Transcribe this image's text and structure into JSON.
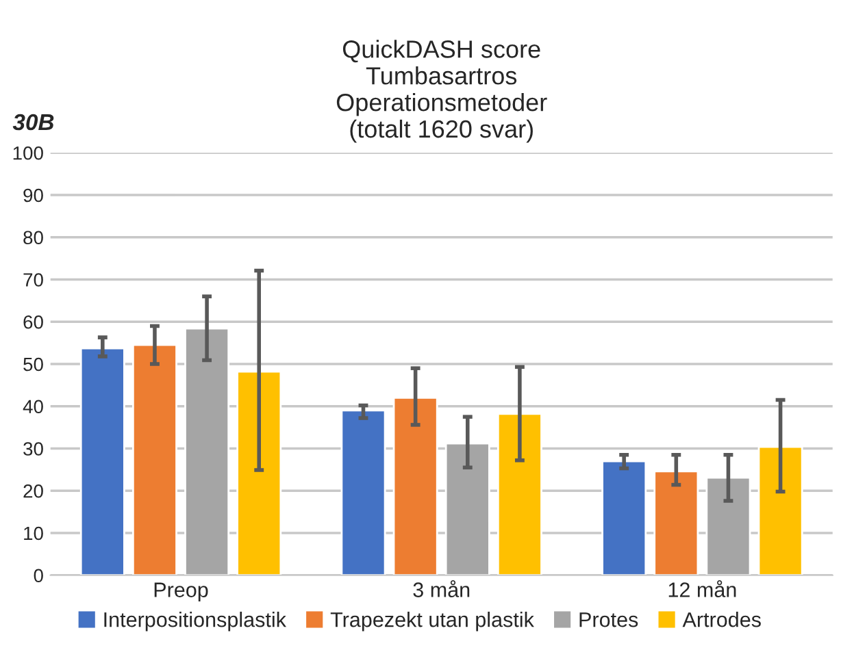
{
  "chart_data": {
    "type": "bar",
    "title": "QuickDASH score\nTumbasartros\nOperationsmetoder\n(totalt 1620 svar)",
    "annotations": [
      "30B"
    ],
    "categories": [
      "Preop",
      "3 mån",
      "12 mån"
    ],
    "series": [
      {
        "name": "Interpositionsplastik",
        "color": "#4472c4",
        "values": [
          53.7,
          39,
          27
        ],
        "errors": [
          [
            51.8,
            56.3
          ],
          [
            37.2,
            40.2
          ],
          [
            25.3,
            28.5
          ]
        ]
      },
      {
        "name": "Trapezekt utan plastik",
        "color": "#ed7d31",
        "values": [
          54.5,
          42,
          24.6
        ],
        "errors": [
          [
            50,
            59
          ],
          [
            35.6,
            49
          ],
          [
            21.4,
            28.5
          ]
        ]
      },
      {
        "name": "Protes",
        "color": "#a5a5a5",
        "values": [
          58.4,
          31.2,
          23.1
        ],
        "errors": [
          [
            50.9,
            66
          ],
          [
            25.5,
            37.5
          ],
          [
            17.6,
            28.5
          ]
        ]
      },
      {
        "name": "Artrodes",
        "color": "#ffc000",
        "values": [
          48.2,
          38.2,
          30.4
        ],
        "errors": [
          [
            24.9,
            72.1
          ],
          [
            27.2,
            49.3
          ],
          [
            19.8,
            41.5
          ]
        ]
      }
    ],
    "ylim": [
      0,
      100
    ],
    "yticks": [
      0,
      10,
      20,
      30,
      40,
      50,
      60,
      70,
      80,
      90,
      100
    ],
    "grid": "y",
    "legend": "bottom"
  }
}
